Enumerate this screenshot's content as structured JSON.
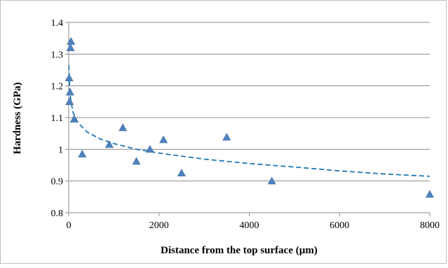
{
  "chart_data": {
    "type": "scatter",
    "title": "",
    "xlabel": "Distance from the top surface (µm)",
    "ylabel": "Hardness (GPa)",
    "xlim": [
      0,
      8000
    ],
    "ylim": [
      0.8,
      1.4
    ],
    "x_ticks": [
      0,
      2000,
      4000,
      6000,
      8000
    ],
    "y_ticks": [
      0.8,
      0.9,
      1.0,
      1.1,
      1.2,
      1.3,
      1.4
    ],
    "x_tick_labels": [
      "0",
      "2000",
      "4000",
      "6000",
      "8000"
    ],
    "y_tick_labels": [
      "0.8",
      "0.9",
      "1",
      "1.1",
      "1.2",
      "1.3",
      "1.4"
    ],
    "grid": "horizontal",
    "legend": "none",
    "series": [
      {
        "marker": "triangle",
        "color": "#4f81bd",
        "points": [
          {
            "x": 10,
            "y": 1.225
          },
          {
            "x": 20,
            "y": 1.15
          },
          {
            "x": 30,
            "y": 1.18
          },
          {
            "x": 40,
            "y": 1.32
          },
          {
            "x": 50,
            "y": 1.34
          },
          {
            "x": 120,
            "y": 1.095
          },
          {
            "x": 300,
            "y": 0.985
          },
          {
            "x": 900,
            "y": 1.015
          },
          {
            "x": 1200,
            "y": 1.068
          },
          {
            "x": 1500,
            "y": 0.962
          },
          {
            "x": 1800,
            "y": 1.0
          },
          {
            "x": 2100,
            "y": 1.03
          },
          {
            "x": 2500,
            "y": 0.925
          },
          {
            "x": 3500,
            "y": 1.038
          },
          {
            "x": 4500,
            "y": 0.9
          },
          {
            "x": 8000,
            "y": 0.858
          }
        ]
      }
    ],
    "trendline": {
      "type": "logarithmic",
      "style": "dashed",
      "color": "#1f77b4",
      "points": [
        {
          "x": 5,
          "y": 1.265
        },
        {
          "x": 20,
          "y": 1.19
        },
        {
          "x": 50,
          "y": 1.15
        },
        {
          "x": 100,
          "y": 1.115
        },
        {
          "x": 200,
          "y": 1.085
        },
        {
          "x": 400,
          "y": 1.055
        },
        {
          "x": 700,
          "y": 1.032
        },
        {
          "x": 1000,
          "y": 1.018
        },
        {
          "x": 1500,
          "y": 1.0
        },
        {
          "x": 2000,
          "y": 0.988
        },
        {
          "x": 3000,
          "y": 0.969
        },
        {
          "x": 4000,
          "y": 0.955
        },
        {
          "x": 5000,
          "y": 0.944
        },
        {
          "x": 6000,
          "y": 0.932
        },
        {
          "x": 7000,
          "y": 0.922
        },
        {
          "x": 8000,
          "y": 0.915
        }
      ]
    }
  }
}
